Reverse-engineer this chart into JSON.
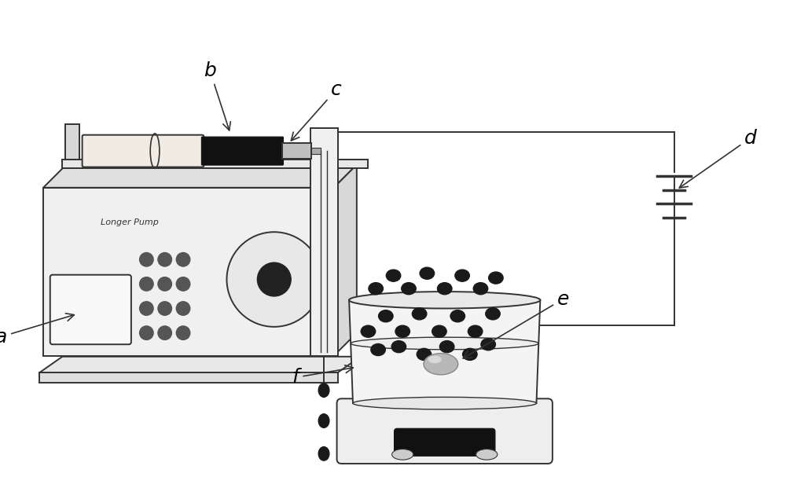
{
  "bg_color": "#ffffff",
  "label_a": "a",
  "label_b": "b",
  "label_c": "c",
  "label_d": "d",
  "label_e": "e",
  "label_f": "f",
  "pump_text": "Longer Pump",
  "line_color": "#333333",
  "font_size_label": 18,
  "font_size_pump": 8,
  "droplet_color": "#1a1a1a",
  "bead_color": "#1a1a1a"
}
